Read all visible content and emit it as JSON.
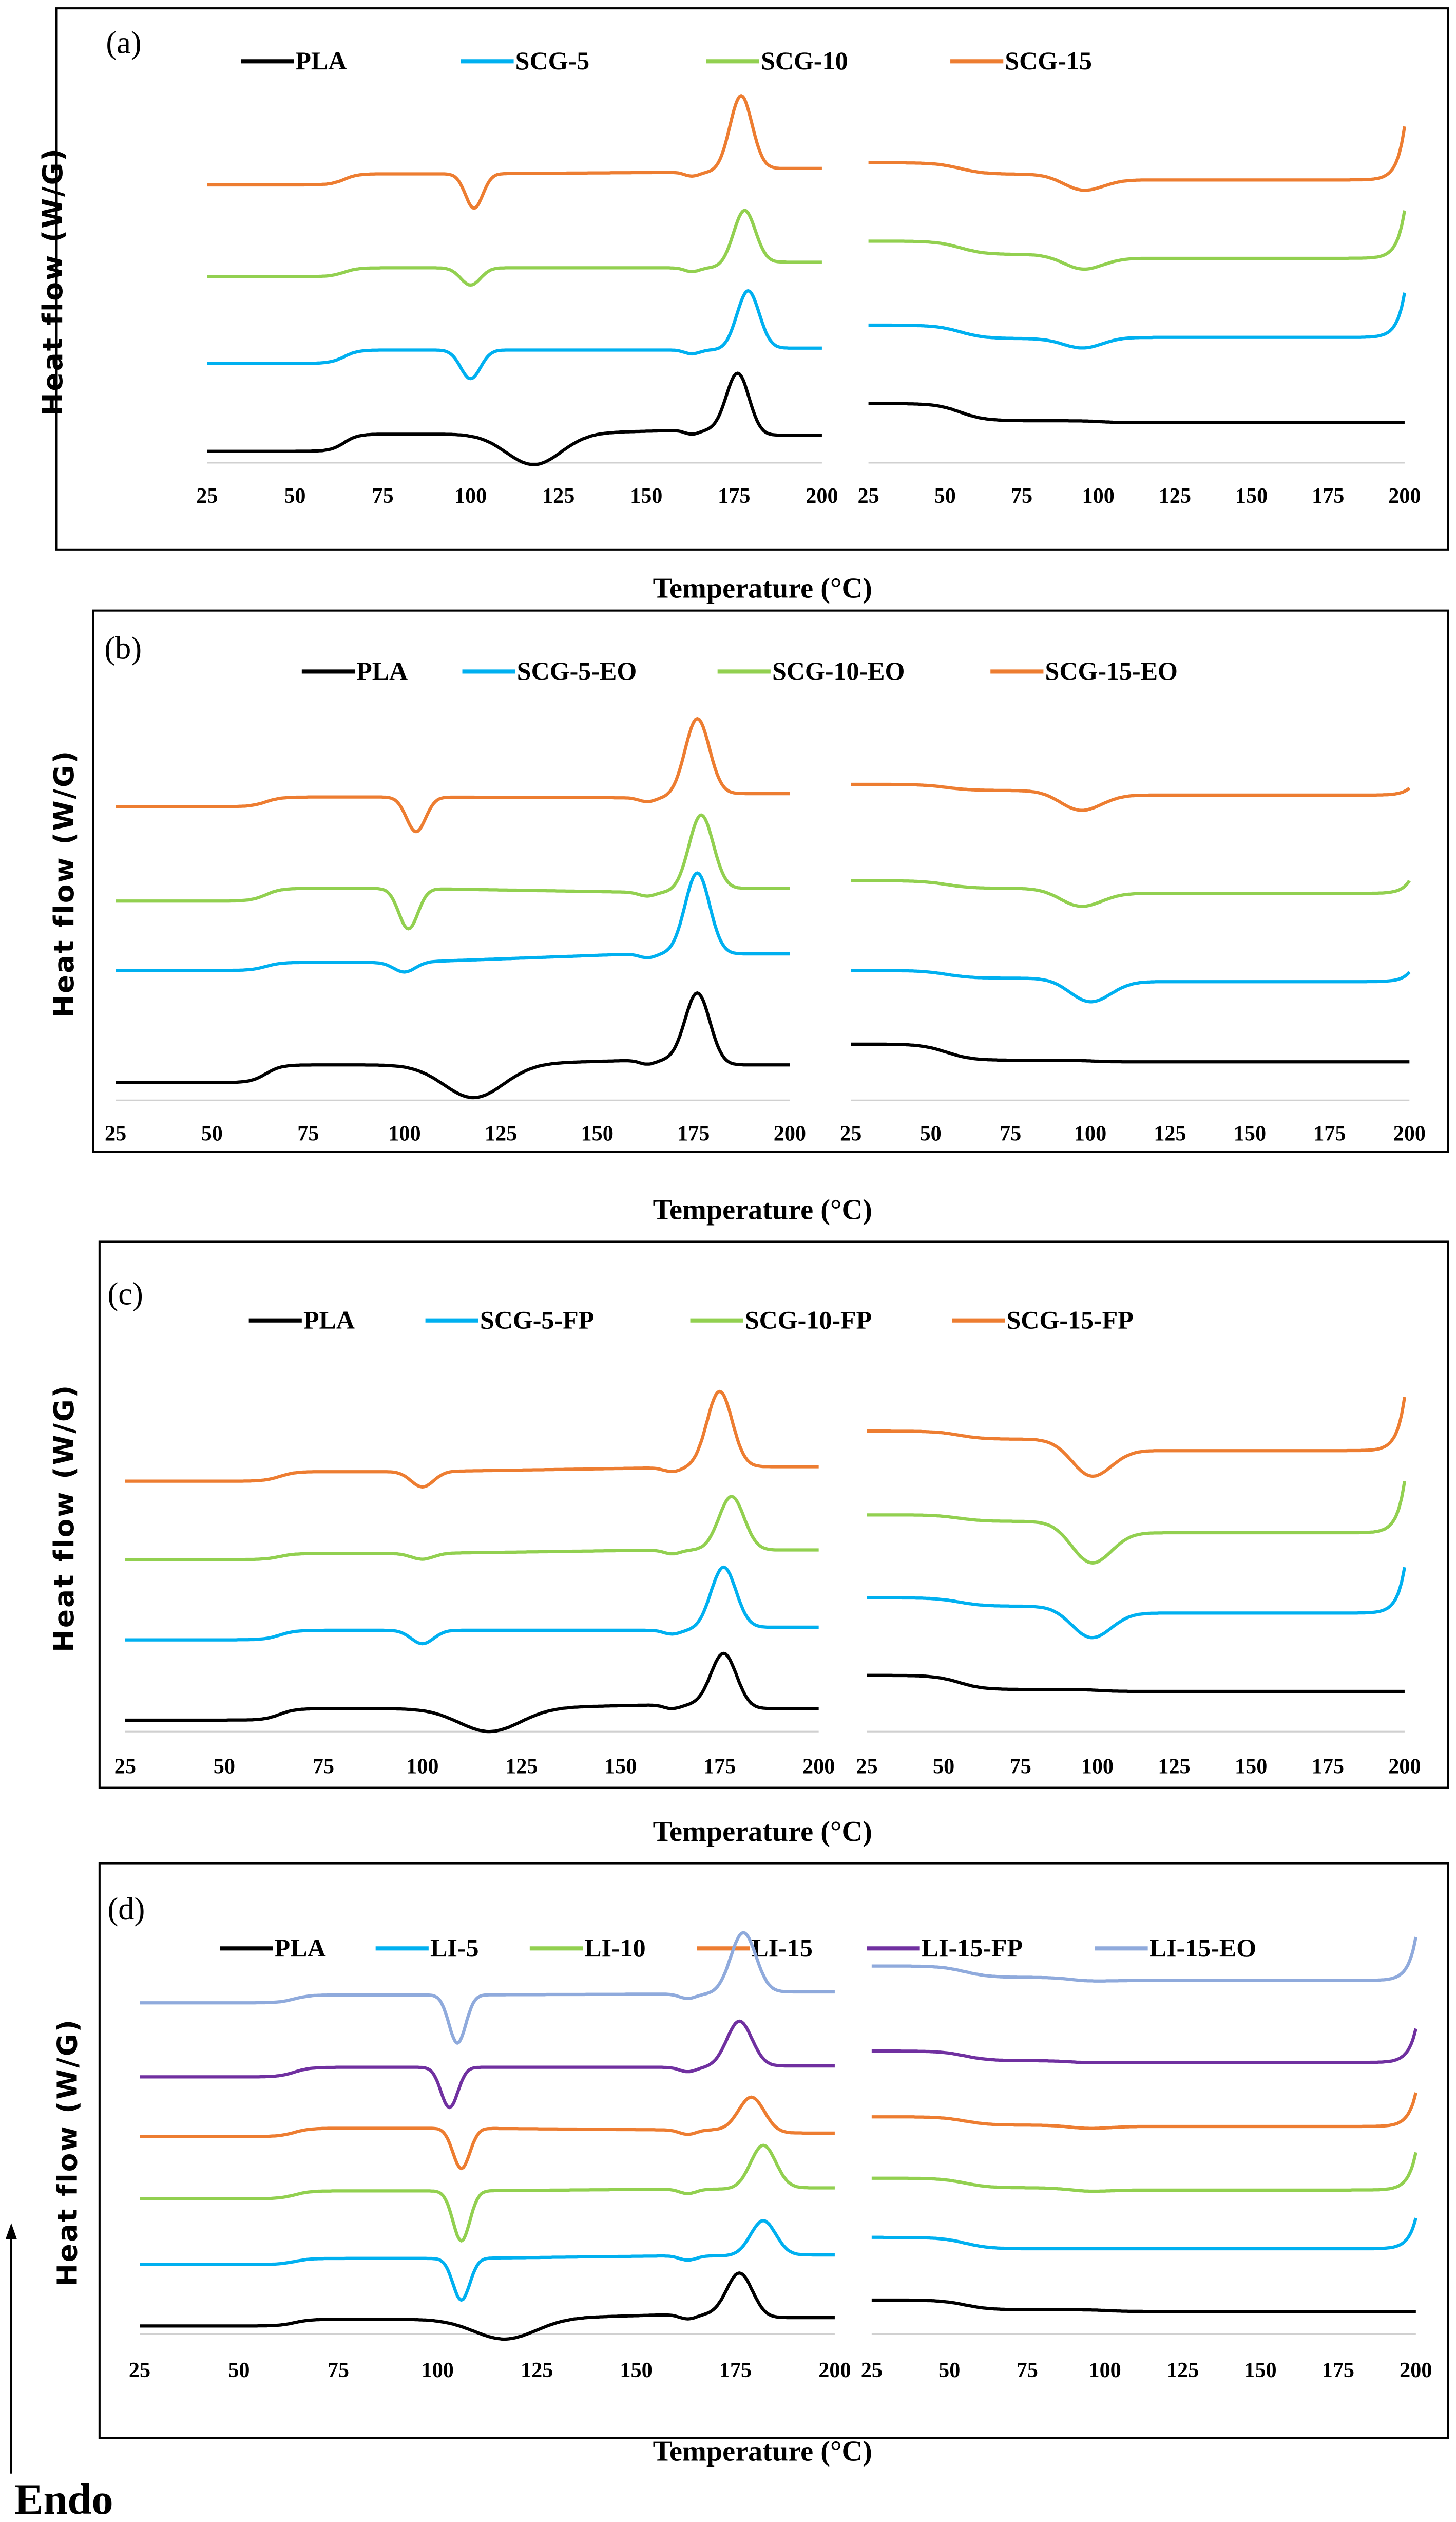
{
  "figure": {
    "endo_label": "Endo"
  },
  "chart_data": [
    {
      "panel": "(a)",
      "type": "line",
      "title": "",
      "xlabel": "Temperature (°C)",
      "ylabel": "Heat flow (W/G)",
      "xlim": [
        25,
        200
      ],
      "xticks": [
        "25",
        "50",
        "75",
        "100",
        "125",
        "150",
        "175",
        "200"
      ],
      "segments": [
        "heating",
        "cooling"
      ],
      "y_units": "arbitrary, vertically offset",
      "grid": false,
      "legend": "top",
      "series": [
        {
          "name": "PLA",
          "color": "#000000",
          "heating": {
            "start": 0.3,
            "tg": 0.45,
            "pre": 0.85,
            "cc_T": 118,
            "cc_d": 0.8,
            "cc_w": 11,
            "melt_T": 176,
            "melt_h": 1.5,
            "end": 0.72
          },
          "cooling": {
            "start": 1.55,
            "step": 0.45,
            "dip_T": 95,
            "dip": 0,
            "level": 1.05,
            "rise": 0
          }
        },
        {
          "name": "SCG-5",
          "color": "#00B0F0",
          "heating": {
            "start": 2.6,
            "tg": 0.35,
            "pre": 2.95,
            "cc_T": 100,
            "cc_d": 0.75,
            "cc_w": 4,
            "melt_T": 179,
            "melt_h": 1.55,
            "end": 3.0
          },
          "cooling": {
            "start": 3.6,
            "step": 0.35,
            "dip_T": 95,
            "dip": 0.25,
            "level": 3.28,
            "rise": 1.17
          }
        },
        {
          "name": "SCG-10",
          "color": "#92D050",
          "heating": {
            "start": 4.87,
            "tg": 0.23,
            "pre": 5.1,
            "cc_T": 100,
            "cc_d": 0.45,
            "cc_w": 4,
            "melt_T": 178,
            "melt_h": 1.5,
            "end": 5.25
          },
          "cooling": {
            "start": 5.8,
            "step": 0.35,
            "dip_T": 95,
            "dip": 0.37,
            "level": 5.35,
            "rise": 1.25
          }
        },
        {
          "name": "SCG-15",
          "color": "#ED7D31",
          "heating": {
            "start": 7.27,
            "tg": 0.29,
            "pre": 7.6,
            "cc_T": 101,
            "cc_d": 0.9,
            "cc_w": 3.5,
            "melt_T": 177,
            "melt_h": 2.0,
            "end": 7.7
          },
          "cooling": {
            "start": 7.85,
            "step": 0.3,
            "dip_T": 95,
            "dip": 0.4,
            "level": 7.4,
            "rise": 1.4
          }
        }
      ]
    },
    {
      "panel": "(b)",
      "type": "line",
      "title": "",
      "xlabel": "Temperature (°C)",
      "ylabel": "Heat flow (W/G)",
      "xlim": [
        25,
        200
      ],
      "xticks": [
        "25",
        "50",
        "75",
        "100",
        "125",
        "150",
        "175",
        "200"
      ],
      "segments": [
        "heating",
        "cooling"
      ],
      "y_units": "arbitrary, vertically offset",
      "grid": false,
      "legend": "top",
      "series": [
        {
          "name": "PLA",
          "color": "#000000",
          "heating": {
            "start": 0.46,
            "tg": 0.46,
            "pre": 1.04,
            "cc_T": 118,
            "cc_d": 0.85,
            "cc_w": 11,
            "melt_T": 176,
            "melt_h": 1.75,
            "end": 0.92
          },
          "cooling": {
            "start": 1.46,
            "step": 0.42,
            "dip_T": 95,
            "dip": 0,
            "level": 1.0,
            "rise": 0
          }
        },
        {
          "name": "SCG-5-EO",
          "color": "#00B0F0",
          "heating": {
            "start": 3.37,
            "tg": 0.21,
            "pre": 3.8,
            "cc_T": 100,
            "cc_d": 0.25,
            "cc_w": 4,
            "melt_T": 176,
            "melt_h": 2.1,
            "end": 3.8
          },
          "cooling": {
            "start": 3.37,
            "step": 0.2,
            "dip_T": 100,
            "dip": 0.6,
            "level": 3.08,
            "rise": 0.25
          }
        },
        {
          "name": "SCG-10-EO",
          "color": "#92D050",
          "heating": {
            "start": 5.17,
            "tg": 0.33,
            "pre": 5.4,
            "cc_T": 101,
            "cc_d": 1.05,
            "cc_w": 3.5,
            "melt_T": 177,
            "melt_h": 2.0,
            "end": 5.5
          },
          "cooling": {
            "start": 5.7,
            "step": 0.2,
            "dip_T": 97,
            "dip": 0.45,
            "level": 5.37,
            "rise": 0.33
          }
        },
        {
          "name": "SCG-15-EO",
          "color": "#ED7D31",
          "heating": {
            "start": 7.62,
            "tg": 0.25,
            "pre": 7.85,
            "cc_T": 103,
            "cc_d": 0.9,
            "cc_w": 3.5,
            "melt_T": 176,
            "melt_h": 2.05,
            "end": 7.96
          },
          "cooling": {
            "start": 8.2,
            "step": 0.16,
            "dip_T": 97,
            "dip": 0.5,
            "level": 7.92,
            "rise": 0.18
          }
        }
      ]
    },
    {
      "panel": "(c)",
      "type": "line",
      "title": "",
      "xlabel": "Temperature (°C)",
      "ylabel": "Heat flow (W/G)",
      "xlim": [
        25,
        200
      ],
      "xticks": [
        "25",
        "50",
        "75",
        "100",
        "125",
        "150",
        "175",
        "200"
      ],
      "segments": [
        "heating",
        "cooling"
      ],
      "y_units": "arbitrary, vertically offset",
      "grid": false,
      "legend": "top",
      "series": [
        {
          "name": "PLA",
          "color": "#000000",
          "heating": {
            "start": 0.3,
            "tg": 0.3,
            "pre": 0.7,
            "cc_T": 117,
            "cc_d": 0.6,
            "cc_w": 11,
            "melt_T": 176,
            "melt_h": 1.35,
            "end": 0.6
          },
          "cooling": {
            "start": 1.47,
            "step": 0.37,
            "dip_T": 95,
            "dip": 0,
            "level": 1.05,
            "rise": 0
          }
        },
        {
          "name": "SCG-5-FP",
          "color": "#00B0F0",
          "heating": {
            "start": 2.4,
            "tg": 0.25,
            "pre": 2.65,
            "cc_T": 100,
            "cc_d": 0.35,
            "cc_w": 4,
            "melt_T": 176,
            "melt_h": 1.65,
            "end": 2.73
          },
          "cooling": {
            "start": 3.5,
            "step": 0.22,
            "dip_T": 98,
            "dip": 0.8,
            "level": 3.1,
            "rise": 1.2
          }
        },
        {
          "name": "SCG-10-FP",
          "color": "#92D050",
          "heating": {
            "start": 4.5,
            "tg": 0.16,
            "pre": 4.75,
            "cc_T": 100,
            "cc_d": 0.15,
            "cc_w": 4,
            "melt_T": 178,
            "melt_h": 1.4,
            "end": 4.75
          },
          "cooling": {
            "start": 5.67,
            "step": 0.17,
            "dip_T": 98,
            "dip": 1.05,
            "level": 5.2,
            "rise": 1.35
          }
        },
        {
          "name": "SCG-15-FP",
          "color": "#ED7D31",
          "heating": {
            "start": 6.55,
            "tg": 0.25,
            "pre": 6.9,
            "cc_T": 100,
            "cc_d": 0.4,
            "cc_w": 4,
            "melt_T": 175,
            "melt_h": 2.0,
            "end": 6.93
          },
          "cooling": {
            "start": 7.86,
            "step": 0.21,
            "dip_T": 98,
            "dip": 0.93,
            "level": 7.35,
            "rise": 1.4
          }
        }
      ]
    },
    {
      "panel": "(d)",
      "type": "line",
      "title": "",
      "xlabel": "Temperature (°C)",
      "ylabel": "Heat flow (W/G)",
      "xlim": [
        25,
        200
      ],
      "xticks": [
        "25",
        "50",
        "75",
        "100",
        "125",
        "150",
        "175",
        "200"
      ],
      "segments": [
        "heating",
        "cooling"
      ],
      "y_units": "arbitrary, vertically offset",
      "grid": false,
      "legend": "top",
      "series": [
        {
          "name": "PLA",
          "color": "#000000",
          "heating": {
            "start": 0.18,
            "tg": 0.15,
            "pre": 0.44,
            "cc_T": 117,
            "cc_d": 0.45,
            "cc_w": 11,
            "melt_T": 176,
            "melt_h": 0.95,
            "end": 0.37
          },
          "cooling": {
            "start": 0.77,
            "step": 0.22,
            "dip_T": 95,
            "dip": 0,
            "level": 0.51,
            "rise": 0
          }
        },
        {
          "name": "LI-5",
          "color": "#00B0F0",
          "heating": {
            "start": 1.58,
            "tg": 0.14,
            "pre": 1.78,
            "cc_T": 106,
            "cc_d": 0.95,
            "cc_w": 3,
            "melt_T": 182,
            "melt_h": 0.8,
            "end": 1.8
          },
          "cooling": {
            "start": 2.2,
            "step": 0.26,
            "dip_T": 95,
            "dip": 0,
            "level": 1.94,
            "rise": 0.7
          }
        },
        {
          "name": "LI-10",
          "color": "#92D050",
          "heating": {
            "start": 3.08,
            "tg": 0.18,
            "pre": 3.3,
            "cc_T": 106,
            "cc_d": 1.14,
            "cc_w": 3,
            "melt_T": 182,
            "melt_h": 1.0,
            "end": 3.33
          },
          "cooling": {
            "start": 3.55,
            "step": 0.22,
            "dip_T": 95,
            "dip": 0.07,
            "level": 3.28,
            "rise": 0.86
          }
        },
        {
          "name": "LI-15",
          "color": "#ED7D31",
          "heating": {
            "start": 4.5,
            "tg": 0.19,
            "pre": 4.65,
            "cc_T": 106,
            "cc_d": 0.92,
            "cc_w": 3,
            "melt_T": 179,
            "melt_h": 0.75,
            "end": 4.58
          },
          "cooling": {
            "start": 4.95,
            "step": 0.19,
            "dip_T": 95,
            "dip": 0.07,
            "level": 4.73,
            "rise": 0.77
          }
        },
        {
          "name": "LI-15-FP",
          "color": "#7030A0",
          "heating": {
            "start": 5.86,
            "tg": 0.22,
            "pre": 6.08,
            "cc_T": 103,
            "cc_d": 0.92,
            "cc_w": 3,
            "melt_T": 176,
            "melt_h": 1.05,
            "end": 6.11
          },
          "cooling": {
            "start": 6.45,
            "step": 0.22,
            "dip_T": 95,
            "dip": 0.04,
            "level": 6.19,
            "rise": 0.77
          }
        },
        {
          "name": "LI-15-EO",
          "color": "#8FAADC",
          "heating": {
            "start": 7.55,
            "tg": 0.18,
            "pre": 7.75,
            "cc_T": 105,
            "cc_d": 1.1,
            "cc_w": 3,
            "melt_T": 177,
            "melt_h": 1.4,
            "end": 7.8
          },
          "cooling": {
            "start": 8.39,
            "step": 0.26,
            "dip_T": 95,
            "dip": 0.07,
            "level": 8.06,
            "rise": 0.99
          }
        }
      ]
    }
  ]
}
